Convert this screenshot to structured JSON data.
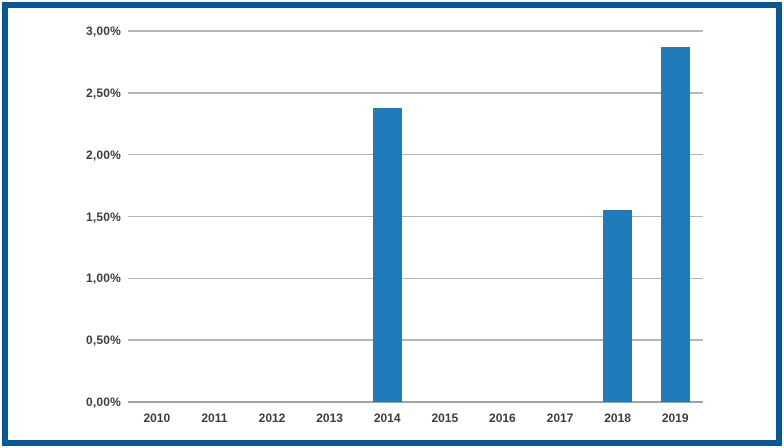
{
  "frame": {
    "border_color": "#0a5795",
    "background": "#ffffff"
  },
  "chart_data": {
    "type": "bar",
    "title": "",
    "xlabel": "",
    "ylabel": "",
    "categories": [
      "2010",
      "2011",
      "2012",
      "2013",
      "2014",
      "2015",
      "2016",
      "2017",
      "2018",
      "2019"
    ],
    "values": [
      0,
      0,
      0,
      0,
      2.38,
      0,
      0,
      0,
      1.55,
      2.87
    ],
    "ylim": [
      0,
      3.0
    ],
    "y_ticks": [
      {
        "value": 0.0,
        "label": "0,00%"
      },
      {
        "value": 0.5,
        "label": "0,50%"
      },
      {
        "value": 1.0,
        "label": "1,00%"
      },
      {
        "value": 1.5,
        "label": "1,50%"
      },
      {
        "value": 2.0,
        "label": "2,00%"
      },
      {
        "value": 2.5,
        "label": "2,50%"
      },
      {
        "value": 3.0,
        "label": "3,00%"
      }
    ],
    "grid": true,
    "legend": null,
    "bar_color": "#1f7cb9",
    "gridline_color": "#b5b5b8",
    "axis_line_color": "#a2a2a5",
    "label_color": "#3c3c3c"
  }
}
